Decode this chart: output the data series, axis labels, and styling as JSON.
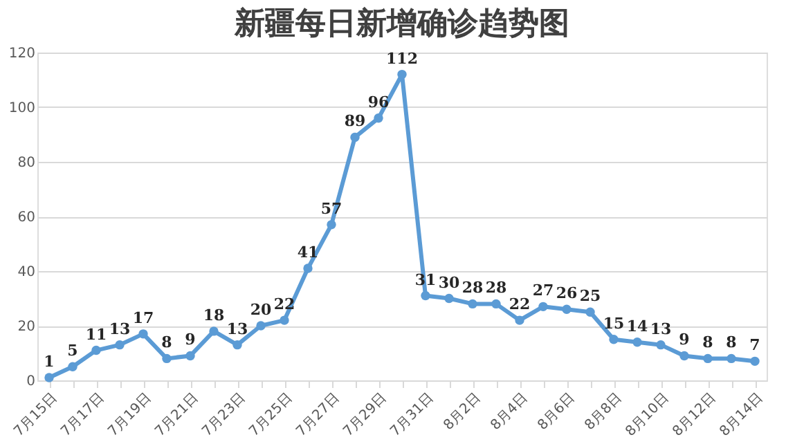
{
  "chart_data": {
    "type": "line",
    "title": "新疆每日新增确诊趋势图",
    "categories": [
      "7月15日",
      null,
      "7月17日",
      null,
      "7月19日",
      null,
      "7月21日",
      null,
      "7月23日",
      null,
      "7月25日",
      null,
      "7月27日",
      null,
      "7月29日",
      null,
      "7月31日",
      null,
      "8月2日",
      null,
      "8月4日",
      null,
      "8月6日",
      null,
      "8月8日",
      null,
      "8月10日",
      null,
      "8月12日",
      null,
      "8月14日"
    ],
    "series": [
      {
        "color": "#5b9bd5",
        "values": [
          1,
          5,
          11,
          13,
          17,
          8,
          9,
          18,
          13,
          20,
          22,
          41,
          57,
          89,
          96,
          112,
          31,
          30,
          28,
          28,
          22,
          27,
          26,
          25,
          15,
          14,
          13,
          9,
          8,
          8,
          7
        ]
      }
    ],
    "ylim": [
      0,
      120
    ],
    "yticks": [
      0,
      20,
      40,
      60,
      80,
      100,
      120
    ],
    "grid": "y",
    "marker": "circle",
    "line_style": "solid",
    "data_labels": true
  }
}
